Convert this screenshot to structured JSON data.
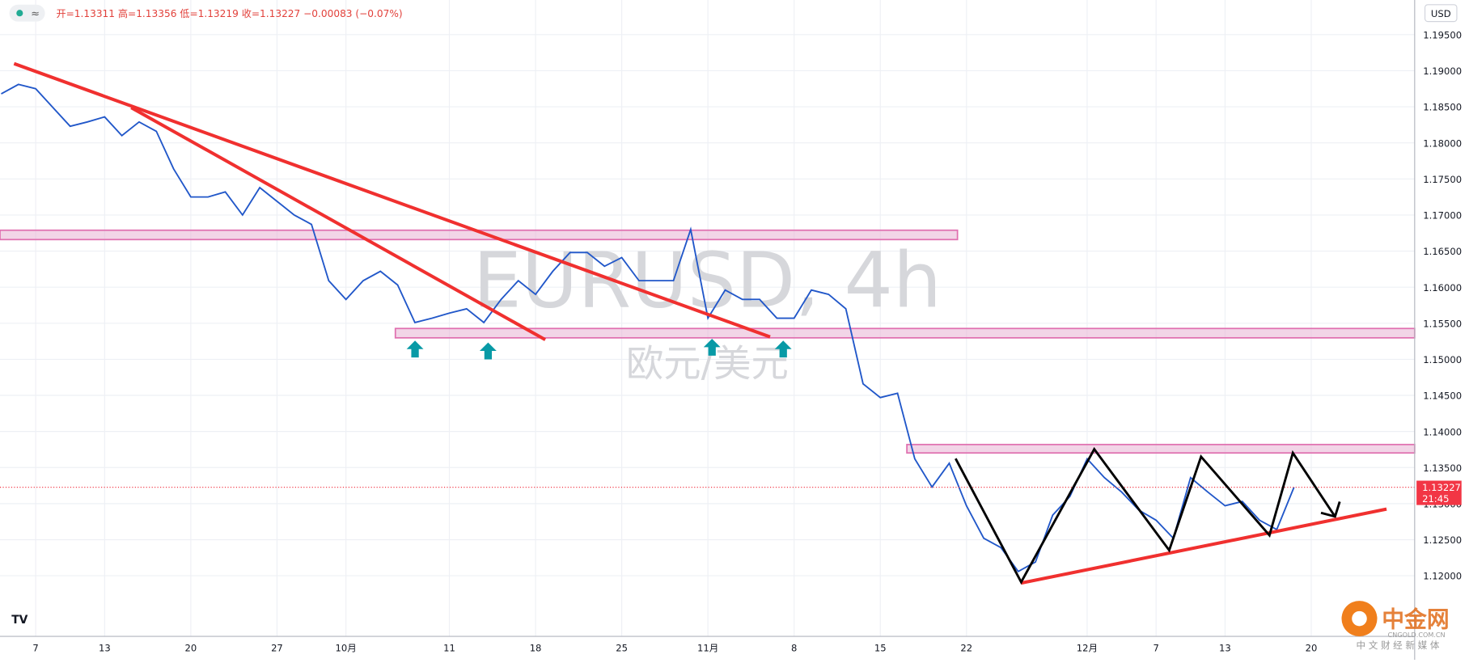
{
  "header": {
    "open": "开=1.13311",
    "high": "高=1.13356",
    "low": "低=1.13219",
    "close": "收=1.13227",
    "change": "−0.00083 (−0.07%)"
  },
  "currency": "USD",
  "watermark": {
    "symbol": "EURUSD, 4h",
    "name": "欧元/美元"
  },
  "price_label": {
    "price": "1.13227",
    "countdown": "21:45"
  },
  "logo": {
    "brand": "中金网",
    "site": "CNGOLD.COM.CN",
    "slogan": "中 文 财 经 新 媒 体"
  },
  "chart_data": {
    "type": "line",
    "color": "#2157c9",
    "grid": true,
    "x": [
      -2,
      -1,
      0,
      1,
      2,
      3,
      4,
      5,
      6,
      7,
      8,
      9,
      10,
      11,
      12,
      13,
      14,
      15,
      16,
      17,
      18,
      19,
      20,
      21,
      22,
      23,
      24,
      25,
      26,
      27,
      28,
      29,
      30,
      31,
      32,
      33,
      34,
      35,
      36,
      37,
      38,
      39,
      40,
      41,
      42,
      43,
      44,
      45,
      46,
      47,
      48,
      49,
      50,
      51,
      52,
      53,
      54,
      55,
      56,
      57,
      58,
      59,
      60,
      61,
      62,
      63,
      64,
      65,
      66,
      67,
      68,
      69,
      70,
      71,
      72,
      73
    ],
    "values": [
      1.1868,
      1.1881,
      1.1875,
      1.1849,
      1.1823,
      1.1829,
      1.1836,
      1.181,
      1.1829,
      1.1816,
      1.1764,
      1.1725,
      1.1725,
      1.1732,
      1.17,
      1.1738,
      1.1719,
      1.17,
      1.1687,
      1.1609,
      1.1583,
      1.1609,
      1.1622,
      1.1603,
      1.1551,
      1.1557,
      1.1564,
      1.157,
      1.1551,
      1.1583,
      1.1609,
      1.159,
      1.1622,
      1.1648,
      1.1648,
      1.1629,
      1.1641,
      1.1609,
      1.1609,
      1.1609,
      1.168,
      1.1557,
      1.1596,
      1.1583,
      1.1583,
      1.1557,
      1.1557,
      1.1596,
      1.159,
      1.157,
      1.1466,
      1.1447,
      1.1453,
      1.1362,
      1.1323,
      1.1356,
      1.1297,
      1.1252,
      1.1239,
      1.1206,
      1.1219,
      1.1284,
      1.131,
      1.1362,
      1.1336,
      1.1316,
      1.1291,
      1.1277,
      1.1252,
      1.1336,
      1.1316,
      1.1297,
      1.1303,
      1.1277,
      1.1264,
      1.13227
    ],
    "last": 1.13227,
    "xlim": [
      -2.07,
      80
    ],
    "ylim": [
      1.1116,
      1.1998
    ],
    "xticks": [
      {
        "value": 0,
        "label": "7"
      },
      {
        "value": 4,
        "label": "13"
      },
      {
        "value": 9,
        "label": "20"
      },
      {
        "value": 14,
        "label": "27"
      },
      {
        "value": 18,
        "label": "10月"
      },
      {
        "value": 24,
        "label": "11"
      },
      {
        "value": 29,
        "label": "18"
      },
      {
        "value": 34,
        "label": "25"
      },
      {
        "value": 39,
        "label": "11月"
      },
      {
        "value": 44,
        "label": "8"
      },
      {
        "value": 49,
        "label": "15"
      },
      {
        "value": 54,
        "label": "22"
      },
      {
        "value": 61,
        "label": "12月"
      },
      {
        "value": 65,
        "label": "7"
      },
      {
        "value": 69,
        "label": "13"
      },
      {
        "value": 74,
        "label": "20"
      }
    ],
    "yticks": [
      {
        "value": 1.12,
        "label": "1.12000"
      },
      {
        "value": 1.125,
        "label": "1.12500"
      },
      {
        "value": 1.13,
        "label": "1.13000"
      },
      {
        "value": 1.135,
        "label": "1.13500"
      },
      {
        "value": 1.14,
        "label": "1.14000"
      },
      {
        "value": 1.145,
        "label": "1.14500"
      },
      {
        "value": 1.15,
        "label": "1.15000"
      },
      {
        "value": 1.155,
        "label": "1.15500"
      },
      {
        "value": 1.16,
        "label": "1.16000"
      },
      {
        "value": 1.165,
        "label": "1.16500"
      },
      {
        "value": 1.17,
        "label": "1.17000"
      },
      {
        "value": 1.175,
        "label": "1.17500"
      },
      {
        "value": 1.18,
        "label": "1.18000"
      },
      {
        "value": 1.185,
        "label": "1.18500"
      },
      {
        "value": 1.19,
        "label": "1.19000"
      },
      {
        "value": 1.195,
        "label": "1.19500"
      }
    ]
  }
}
